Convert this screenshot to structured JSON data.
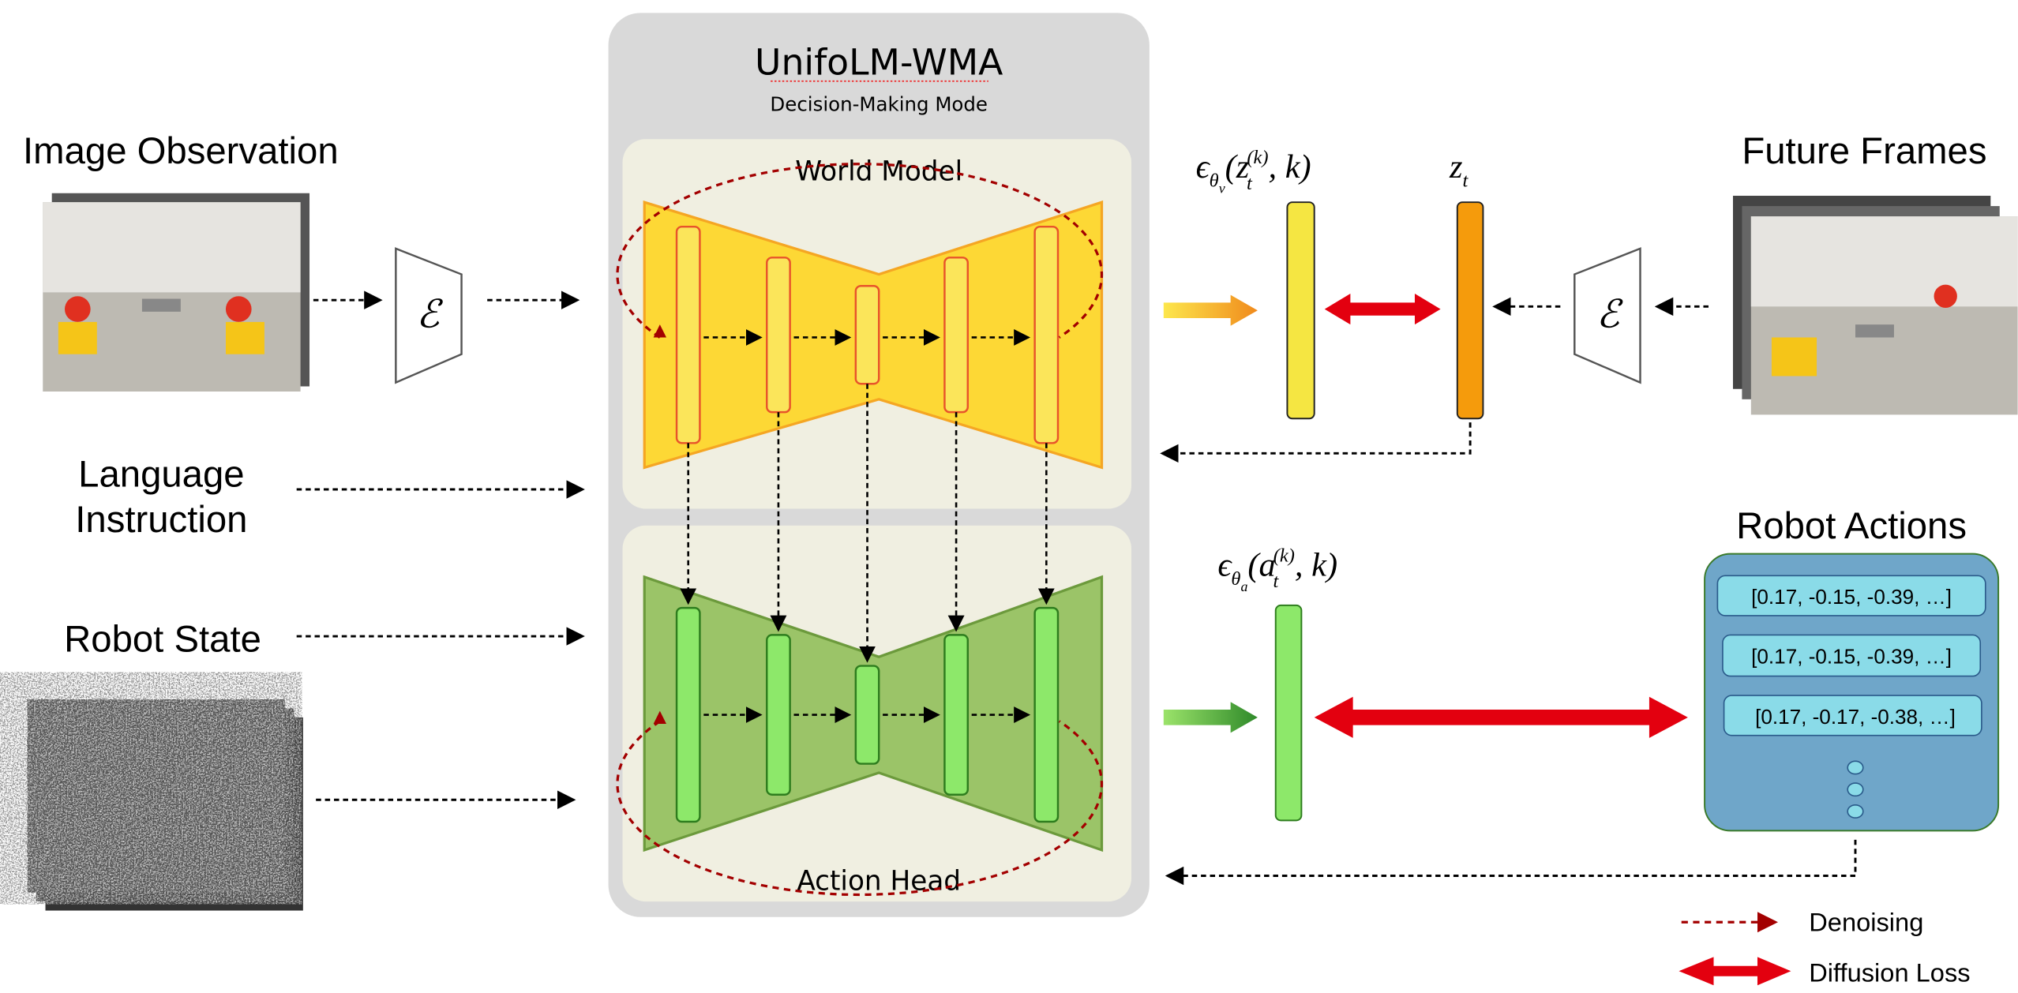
{
  "model": {
    "title": "UnifoLM-WMA",
    "subtitle": "Decision-Making Mode"
  },
  "world_model": {
    "label": "World Model"
  },
  "action_head": {
    "label": "Action Head"
  },
  "inputs": {
    "image_observation": "Image Observation",
    "language_line1": "Language",
    "language_line2": "Instruction",
    "robot_state": "Robot State",
    "encoder_symbol": "ℰ"
  },
  "outputs": {
    "future_frames": "Future Frames",
    "encoder_symbol": "ℰ",
    "robot_actions_title": "Robot Actions",
    "robot_actions": [
      "[0.17, -0.15, -0.39, …]",
      "[0.17, -0.15, -0.39, …]",
      "[0.17, -0.17, -0.38, …]"
    ]
  },
  "math": {
    "eps_v": {
      "eps": "ϵ",
      "theta": "θ",
      "sub": "v",
      "open": "(z",
      "t": "t",
      "k": "(k)",
      "close": ", k)"
    },
    "z_t": {
      "z": "z",
      "t": "t"
    },
    "eps_a": {
      "eps": "ϵ",
      "theta": "θ",
      "sub": "a",
      "open": "(a",
      "t": "t",
      "k": "(k)",
      "close": ", k)"
    }
  },
  "legend": {
    "denoising": "Denoising",
    "diffusion_loss": "Diffusion Loss"
  },
  "colors": {
    "panel": "#d9d9d9",
    "subpanel": "#f0efe1",
    "world_model": "#fdd835",
    "action_head": "#9bc468",
    "denoise": "#a30000",
    "loss": "#e3000f",
    "actions_box": "#6fa6c9"
  }
}
